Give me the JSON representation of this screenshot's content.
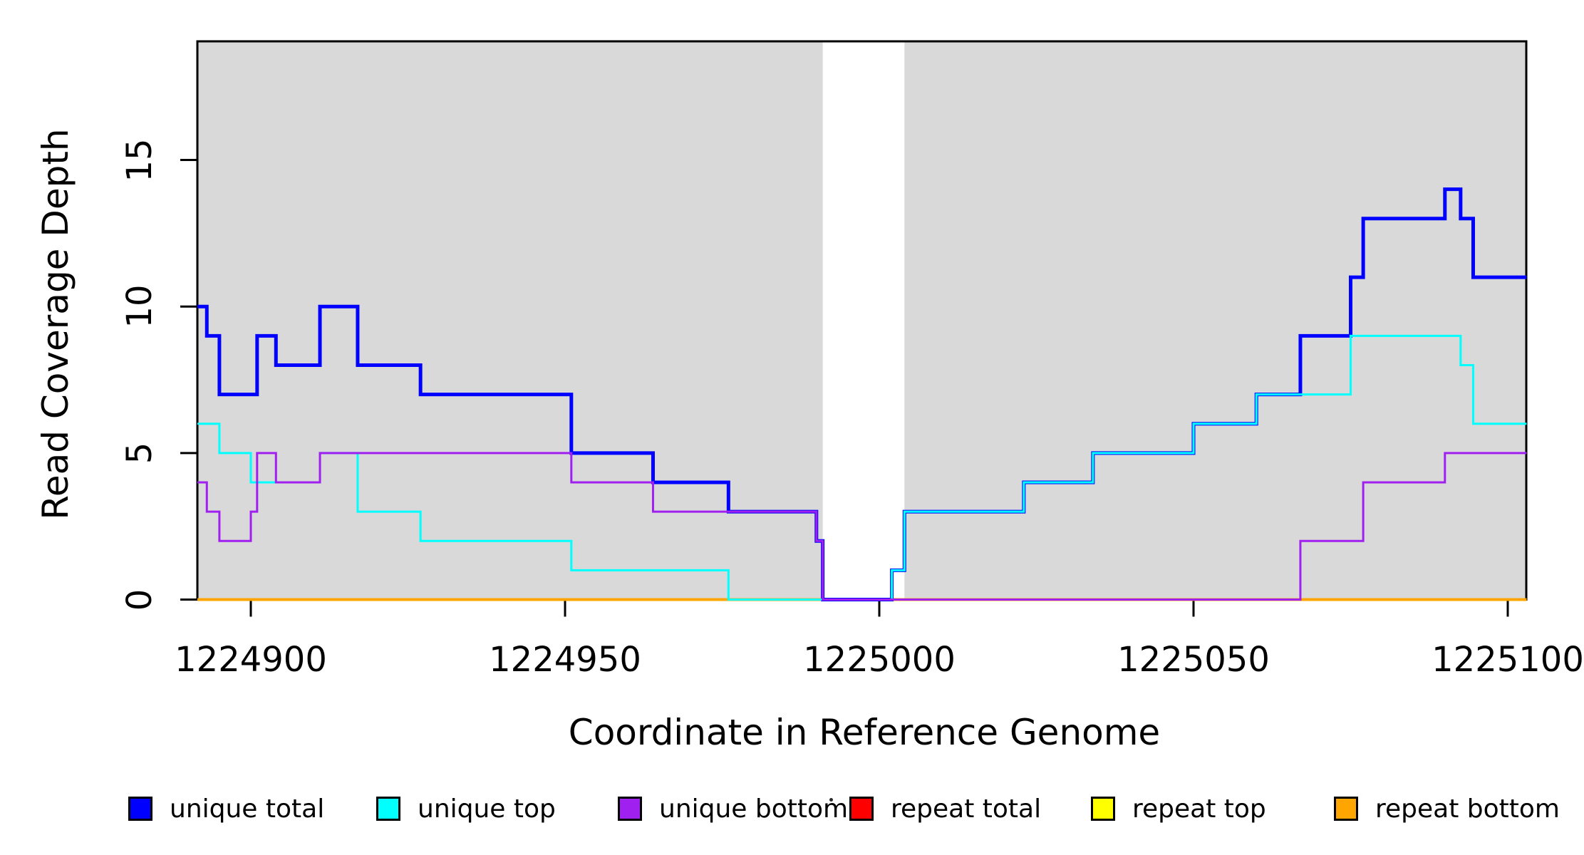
{
  "chart_data": {
    "type": "line",
    "subtype": "step-coverage-plot",
    "title": "",
    "xlabel": "Coordinate in Reference Genome",
    "ylabel": "Read Coverage Depth",
    "x_ticks": [
      1224900,
      1224950,
      1225000,
      1225050,
      1225100
    ],
    "y_ticks": [
      0,
      5,
      10,
      15
    ],
    "xlim": [
      1224891.5,
      1225103
    ],
    "ylim": [
      0,
      19
    ],
    "grid": false,
    "background_shading": {
      "color": "#D9D9D9",
      "regions": [
        [
          1224891.5,
          1224991
        ],
        [
          1225004,
          1225103
        ]
      ],
      "white_gap": [
        1224991,
        1225004
      ]
    },
    "legend_position": "bottom",
    "draw_order": [
      "repeat total",
      "repeat top",
      "repeat bottom",
      "unique total",
      "unique top",
      "unique bottom"
    ],
    "series": [
      {
        "name": "unique total",
        "color": "#0000FF",
        "line_width": 5,
        "steps": [
          [
            1224891.5,
            10
          ],
          [
            1224893,
            9
          ],
          [
            1224895,
            7
          ],
          [
            1224901,
            9
          ],
          [
            1224904,
            8
          ],
          [
            1224911,
            10
          ],
          [
            1224917,
            8
          ],
          [
            1224927,
            7
          ],
          [
            1224951,
            5
          ],
          [
            1224964,
            4
          ],
          [
            1224976,
            3
          ],
          [
            1224990,
            2
          ],
          [
            1224991,
            0
          ],
          [
            1225002,
            1
          ],
          [
            1225004,
            3
          ],
          [
            1225023,
            4
          ],
          [
            1225034,
            5
          ],
          [
            1225050,
            6
          ],
          [
            1225060,
            7
          ],
          [
            1225067,
            9
          ],
          [
            1225075,
            11
          ],
          [
            1225077,
            13
          ],
          [
            1225090,
            14
          ],
          [
            1225092.5,
            13
          ],
          [
            1225094.5,
            11
          ]
        ]
      },
      {
        "name": "unique top",
        "color": "#00FFFF",
        "line_width": 3,
        "steps": [
          [
            1224891.5,
            6
          ],
          [
            1224895,
            5
          ],
          [
            1224900,
            4
          ],
          [
            1224911,
            5
          ],
          [
            1224917,
            3
          ],
          [
            1224927,
            2
          ],
          [
            1224951,
            1
          ],
          [
            1224976,
            0
          ],
          [
            1225002,
            1
          ],
          [
            1225004,
            3
          ],
          [
            1225023,
            4
          ],
          [
            1225034,
            5
          ],
          [
            1225050,
            6
          ],
          [
            1225060,
            7
          ],
          [
            1225075,
            9
          ],
          [
            1225092.5,
            8
          ],
          [
            1225094.5,
            6
          ]
        ]
      },
      {
        "name": "unique bottom",
        "color": "#A020F0",
        "line_width": 3,
        "steps": [
          [
            1224891.5,
            4
          ],
          [
            1224893,
            3
          ],
          [
            1224895,
            2
          ],
          [
            1224900,
            3
          ],
          [
            1224901,
            5
          ],
          [
            1224904,
            4
          ],
          [
            1224911,
            5
          ],
          [
            1224951,
            4
          ],
          [
            1224964,
            3
          ],
          [
            1224990,
            2
          ],
          [
            1224991,
            0
          ],
          [
            1225067,
            2
          ],
          [
            1225077,
            4
          ],
          [
            1225090,
            5
          ]
        ]
      },
      {
        "name": "repeat total",
        "color": "#FF0000",
        "line_width": 3,
        "steps": [
          [
            1224891.5,
            0
          ]
        ]
      },
      {
        "name": "repeat top",
        "color": "#FFFF00",
        "line_width": 3,
        "steps": [
          [
            1224891.5,
            0
          ]
        ]
      },
      {
        "name": "repeat bottom",
        "color": "#FFA500",
        "line_width": 4,
        "steps": [
          [
            1224891.5,
            0
          ]
        ]
      }
    ]
  },
  "legend": {
    "items": [
      {
        "label": "unique total",
        "color": "#0000FF"
      },
      {
        "label": "unique top",
        "color": "#00FFFF"
      },
      {
        "label": "unique bottom",
        "color": "#A020F0"
      },
      {
        "label": "repeat total",
        "color": "#FF0000"
      },
      {
        "label": "repeat top",
        "color": "#FFFF00"
      },
      {
        "label": "repeat bottom",
        "color": "#FFA500"
      }
    ]
  },
  "axes": {
    "x_title": "Coordinate in Reference Genome",
    "y_title": "Read Coverage Depth"
  }
}
